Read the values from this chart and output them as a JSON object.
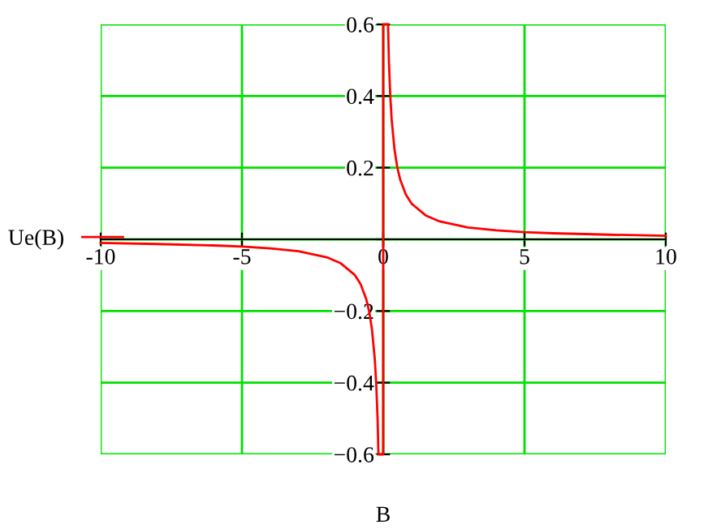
{
  "chart_data": {
    "type": "line",
    "xlabel": "B",
    "x": [
      -10,
      -8,
      -6,
      -5,
      -4,
      -3,
      -2,
      -1.5,
      -1,
      -0.8,
      -0.6,
      -0.5,
      -0.4,
      -0.3,
      -0.25,
      -0.2,
      -0.17,
      0,
      0,
      0.17,
      0.2,
      0.25,
      0.3,
      0.4,
      0.5,
      0.6,
      0.8,
      1,
      1.5,
      2,
      3,
      4,
      5,
      6,
      8,
      10
    ],
    "series": [
      {
        "name": "Ue(B)",
        "color": "#ff0000",
        "values": [
          -0.01,
          -0.013,
          -0.017,
          -0.02,
          -0.025,
          -0.033,
          -0.05,
          -0.067,
          -0.1,
          -0.125,
          -0.167,
          -0.2,
          -0.25,
          -0.333,
          -0.4,
          -0.5,
          -0.6,
          -0.6,
          0.6,
          0.6,
          0.5,
          0.4,
          0.333,
          0.25,
          0.2,
          0.167,
          0.125,
          0.1,
          0.067,
          0.05,
          0.033,
          0.025,
          0.02,
          0.017,
          0.013,
          0.01
        ]
      }
    ],
    "xlim": [
      -10,
      10
    ],
    "ylim": [
      -0.6,
      0.6
    ],
    "xticks": [
      -10,
      -5,
      0,
      5,
      10
    ],
    "yticks": [
      {
        "value": -0.6,
        "label": "−0.6"
      },
      {
        "value": -0.4,
        "label": "−0.4"
      },
      {
        "value": -0.2,
        "label": "−0.2"
      },
      {
        "value": 0,
        "label": null
      },
      0.2,
      0.4,
      0.6
    ],
    "grid": true,
    "legend": "left",
    "marker": "none",
    "line_style": "solid"
  }
}
